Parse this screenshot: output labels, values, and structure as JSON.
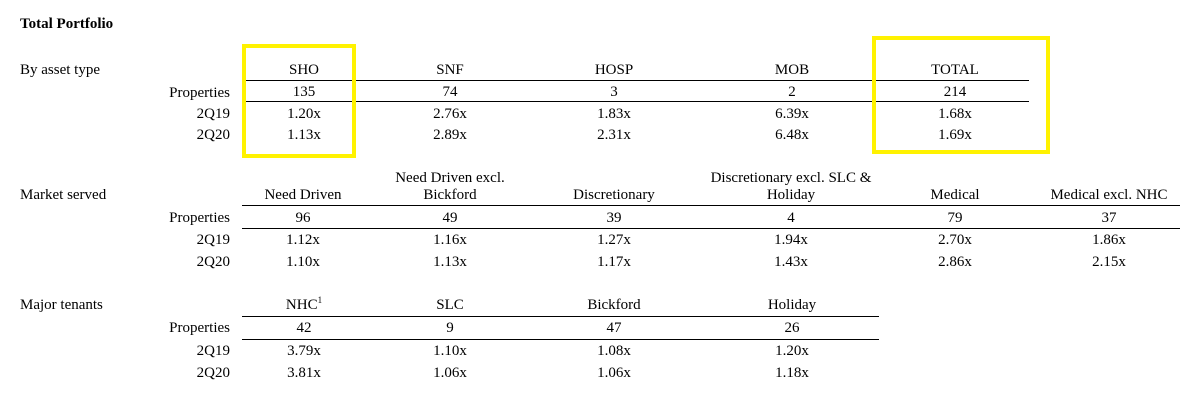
{
  "title": "Total Portfolio",
  "row_labels": {
    "properties": "Properties",
    "r1": "2Q19",
    "r2": "2Q20"
  },
  "asset_type": {
    "label": "By asset type",
    "columns": [
      {
        "header": "SHO",
        "properties": "135",
        "q219": "1.20x",
        "q220": "1.13x"
      },
      {
        "header": "SNF",
        "properties": "74",
        "q219": "2.76x",
        "q220": "2.89x"
      },
      {
        "header": "HOSP",
        "properties": "3",
        "q219": "1.83x",
        "q220": "2.31x"
      },
      {
        "header": "MOB",
        "properties": "2",
        "q219": "6.39x",
        "q220": "6.48x"
      },
      {
        "header": "TOTAL",
        "properties": "214",
        "q219": "1.68x",
        "q220": "1.69x"
      }
    ]
  },
  "market_served": {
    "label": "Market served",
    "columns": [
      {
        "header_line1": "",
        "header_line2": "Need Driven",
        "properties": "96",
        "q219": "1.12x",
        "q220": "1.10x"
      },
      {
        "header_line1": "Need Driven excl.",
        "header_line2": "Bickford",
        "properties": "49",
        "q219": "1.16x",
        "q220": "1.13x"
      },
      {
        "header_line1": "",
        "header_line2": "Discretionary",
        "properties": "39",
        "q219": "1.27x",
        "q220": "1.17x"
      },
      {
        "header_line1": "Discretionary excl. SLC &",
        "header_line2": "Holiday",
        "properties": "4",
        "q219": "1.94x",
        "q220": "1.43x"
      },
      {
        "header_line1": "",
        "header_line2": "Medical",
        "properties": "79",
        "q219": "2.70x",
        "q220": "2.86x"
      },
      {
        "header_line1": "",
        "header_line2": "Medical excl. NHC",
        "properties": "37",
        "q219": "1.86x",
        "q220": "2.15x"
      }
    ]
  },
  "major_tenants": {
    "label": "Major tenants",
    "columns": [
      {
        "header": "NHC",
        "footnote": "1",
        "properties": "42",
        "q219": "3.79x",
        "q220": "3.81x"
      },
      {
        "header": "SLC",
        "footnote": "",
        "properties": "9",
        "q219": "1.10x",
        "q220": "1.06x"
      },
      {
        "header": "Bickford",
        "footnote": "",
        "properties": "47",
        "q219": "1.08x",
        "q220": "1.06x"
      },
      {
        "header": "Holiday",
        "footnote": "",
        "properties": "26",
        "q219": "1.20x",
        "q220": "1.18x"
      }
    ]
  },
  "highlight_color": "#fff200"
}
